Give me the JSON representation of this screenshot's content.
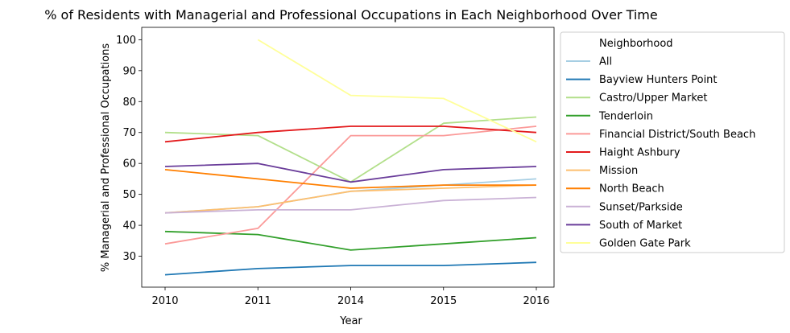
{
  "chart_data": {
    "type": "line",
    "title": "% of Residents with Managerial and Professional Occupations in Each Neighborhood Over Time",
    "xlabel": "Year",
    "ylabel": "% Managerial and Professional Occupations",
    "categories": [
      "2010",
      "2011",
      "2014",
      "2015",
      "2016"
    ],
    "y_ticks": [
      30,
      40,
      50,
      60,
      70,
      80,
      90,
      100
    ],
    "ylim": [
      20,
      104
    ],
    "grid": false,
    "legend": {
      "title": "Neighborhood",
      "placement": "outside-right"
    },
    "series": [
      {
        "name": "All",
        "color": "#a6cee3",
        "values": [
          44,
          46,
          51,
          53,
          55
        ]
      },
      {
        "name": "Bayview Hunters Point",
        "color": "#1f78b4",
        "values": [
          24,
          26,
          27,
          27,
          28
        ]
      },
      {
        "name": "Castro/Upper Market",
        "color": "#b2df8a",
        "values": [
          70,
          69,
          54,
          73,
          75
        ]
      },
      {
        "name": "Tenderloin",
        "color": "#33a02c",
        "values": [
          38,
          37,
          32,
          34,
          36
        ]
      },
      {
        "name": "Financial District/South Beach",
        "color": "#fb9a99",
        "values": [
          34,
          39,
          69,
          69,
          72
        ]
      },
      {
        "name": "Haight Ashbury",
        "color": "#e31a1c",
        "values": [
          67,
          70,
          72,
          72,
          70
        ]
      },
      {
        "name": "Mission",
        "color": "#fdbf6f",
        "values": [
          44,
          46,
          51,
          52,
          53
        ]
      },
      {
        "name": "North Beach",
        "color": "#ff7f00",
        "values": [
          58,
          55,
          52,
          53,
          53
        ]
      },
      {
        "name": "Sunset/Parkside",
        "color": "#cab2d6",
        "values": [
          44,
          45,
          45,
          48,
          49
        ]
      },
      {
        "name": "South of Market",
        "color": "#6a3d9a",
        "values": [
          59,
          60,
          54,
          58,
          59
        ]
      },
      {
        "name": "Golden Gate Park",
        "color": "#ffff99",
        "values": [
          null,
          100,
          82,
          81,
          67
        ]
      }
    ]
  }
}
